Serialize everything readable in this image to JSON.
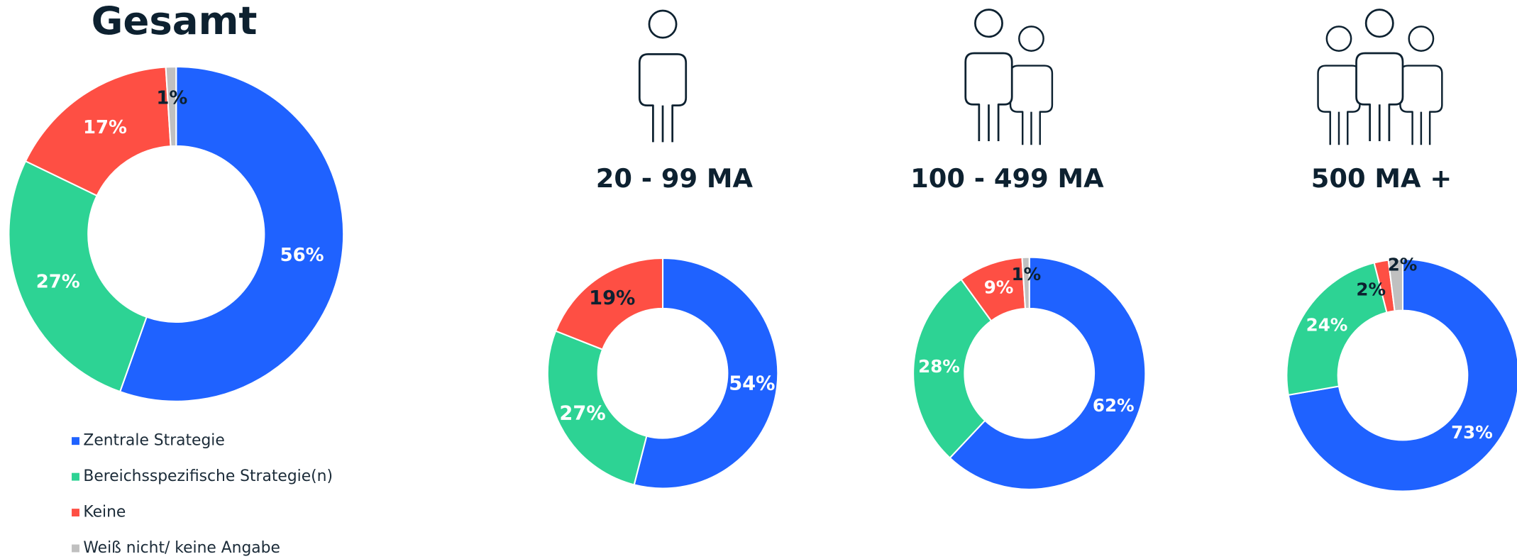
{
  "chart_data": [
    {
      "type": "pie",
      "title": "Gesamt",
      "categories": [
        "Zentrale Strategie",
        "Bereichsspezifische Strategie(n)",
        "Keine",
        "Weiß nicht/ keine Angabe"
      ],
      "colors": [
        "#1f62ff",
        "#2dd394",
        "#fe4f44",
        "#c0c0c0"
      ],
      "values": [
        56,
        27,
        17,
        1
      ],
      "value_labels": [
        "56%",
        "27%",
        "17%",
        "1%"
      ]
    },
    {
      "type": "pie",
      "title": "20 - 99 MA",
      "values": [
        54,
        27,
        19
      ],
      "value_labels": [
        "54%",
        "27%",
        "19%"
      ]
    },
    {
      "type": "pie",
      "title": "100 - 499 MA",
      "values": [
        62,
        28,
        9,
        1
      ],
      "value_labels": [
        "62%",
        "28%",
        "9%",
        "1%"
      ]
    },
    {
      "type": "pie",
      "title": "500 MA +",
      "values": [
        73,
        24,
        2,
        2
      ],
      "value_labels": [
        "73%",
        "24%",
        "2%",
        "2%"
      ]
    }
  ]
}
